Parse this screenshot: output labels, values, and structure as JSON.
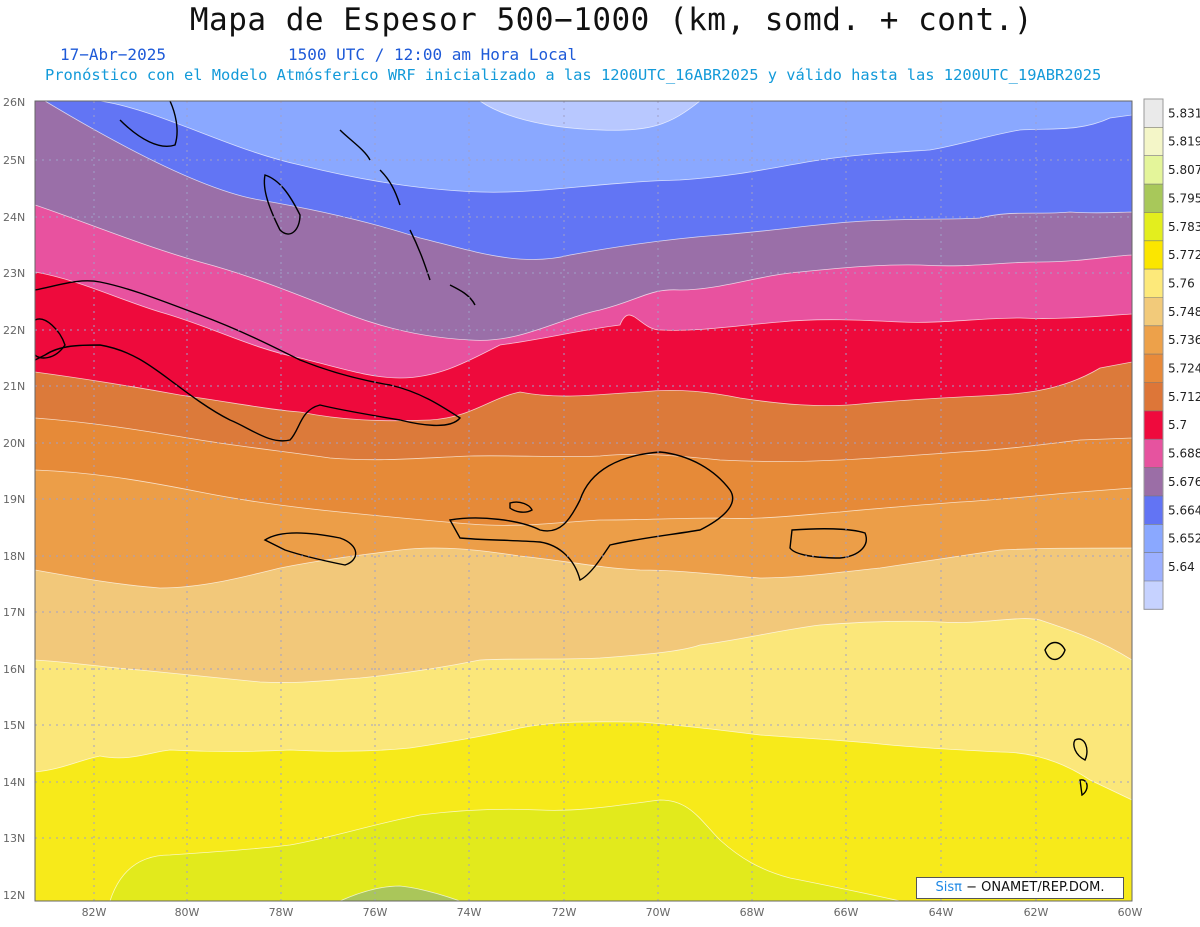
{
  "header": {
    "title": "Mapa de Espesor 500−1000 (km, somd. + cont.)",
    "date": "17−Abr−2025",
    "time": "1500 UTC / 12:00 am Hora Local",
    "forecast": "Pronóstico con el Modelo Atmósferico WRF inicializado a las 1200UTC_16ABR2025 y válido hasta las  1200UTC_19ABR2025"
  },
  "map": {
    "lat_labels": [
      "26N",
      "25N",
      "24N",
      "23N",
      "22N",
      "21N",
      "20N",
      "19N",
      "18N",
      "17N",
      "16N",
      "15N",
      "14N",
      "13N",
      "12N"
    ],
    "lon_labels": [
      "82W",
      "80W",
      "78W",
      "76W",
      "74W",
      "72W",
      "70W",
      "68W",
      "66W",
      "64W",
      "62W",
      "60W"
    ],
    "bands": [
      {
        "level": "5.64",
        "color": "#b8c8ff"
      },
      {
        "level": "5.652",
        "color": "#8aa8ff"
      },
      {
        "level": "5.664",
        "color": "#6275f4"
      },
      {
        "level": "5.676",
        "color": "#9a6fa8"
      },
      {
        "level": "5.688",
        "color": "#e8529f"
      },
      {
        "level": "5.7",
        "color": "#ee0a3c"
      },
      {
        "level": "5.712",
        "color": "#dc7a3a"
      },
      {
        "level": "5.724",
        "color": "#e68a38"
      },
      {
        "level": "5.736",
        "color": "#ec9e48"
      },
      {
        "level": "5.748",
        "color": "#f2c87a"
      },
      {
        "level": "5.76",
        "color": "#fbe77a"
      },
      {
        "level": "5.772",
        "color": "#f7ea1a"
      },
      {
        "level": "5.783",
        "color": "#e2ea1c"
      },
      {
        "level": "5.795",
        "color": "#aac65a"
      }
    ]
  },
  "colorbar": {
    "labels": [
      "5.831",
      "5.819",
      "5.807",
      "5.795",
      "5.783",
      "5.772",
      "5.76",
      "5.748",
      "5.736",
      "5.724",
      "5.712",
      "5.7",
      "5.688",
      "5.676",
      "5.664",
      "5.652",
      "5.64"
    ],
    "colors": [
      "#eaeaea",
      "#f4f6c8",
      "#e4f59a",
      "#a8c85a",
      "#e3ee1e",
      "#fbe600",
      "#fde97a",
      "#f2ca7a",
      "#eda14a",
      "#e88a3a",
      "#dd7638",
      "#ef0a3d",
      "#e6539f",
      "#9b6ea6",
      "#6274f4",
      "#8aa8ff",
      "#9cb0ff",
      "#c6d2ff"
    ]
  },
  "credit": {
    "brand": "Sisπ",
    "text": "− ONAMET/REP.DOM."
  }
}
